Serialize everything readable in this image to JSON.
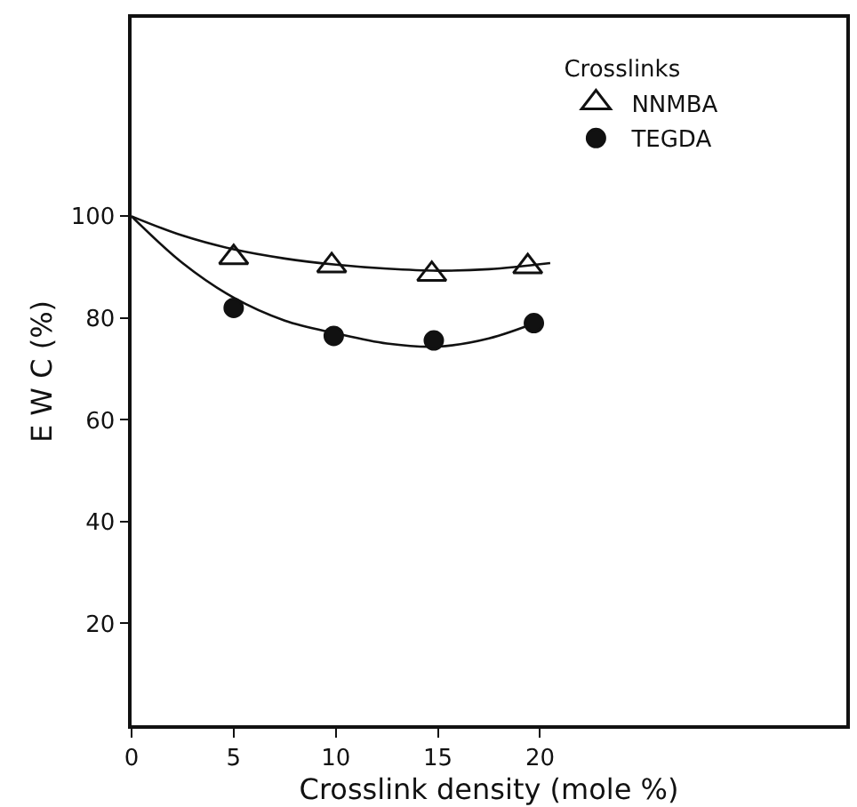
{
  "chart_data": {
    "type": "scatter",
    "xlabel": "Crosslink density (mole %)",
    "ylabel": "E W C (%)",
    "legend_title": "Crosslinks",
    "x": [
      5,
      9.8,
      14.7,
      19.4
    ],
    "series": [
      {
        "type": "line",
        "color": "#111111",
        "marker": "none",
        "x": [
          0,
          2.5,
          5,
          7.5,
          10,
          12.5,
          15,
          17.5,
          20.5
        ],
        "values": [
          100,
          96.2,
          93.5,
          91.7,
          90.5,
          89.7,
          89.3,
          89.6,
          90.8
        ]
      },
      {
        "type": "line",
        "color": "#111111",
        "marker": "none",
        "x": [
          0,
          2.5,
          5,
          7.5,
          10,
          12.5,
          15,
          17.5,
          20
        ],
        "values": [
          100,
          90.8,
          84,
          79.5,
          77,
          75,
          74.4,
          76,
          79.4
        ]
      },
      {
        "name": "NNMBA",
        "color": "#111111",
        "marker": "triangle",
        "values": [
          91.9,
          90.3,
          88.6,
          90.1
        ]
      },
      {
        "name": "TEGDA",
        "color": "#111111",
        "marker": "circle",
        "x": [
          5,
          9.9,
          14.8,
          19.7
        ],
        "values": [
          82,
          76.5,
          75.6,
          79
        ]
      }
    ],
    "xlim": [
      0,
      35
    ],
    "xticks": [
      0,
      5,
      10,
      15,
      20
    ],
    "ylim": [
      0,
      139
    ],
    "yticks": [
      20,
      40,
      60,
      80,
      100
    ],
    "grid": false,
    "legend": "top right"
  }
}
